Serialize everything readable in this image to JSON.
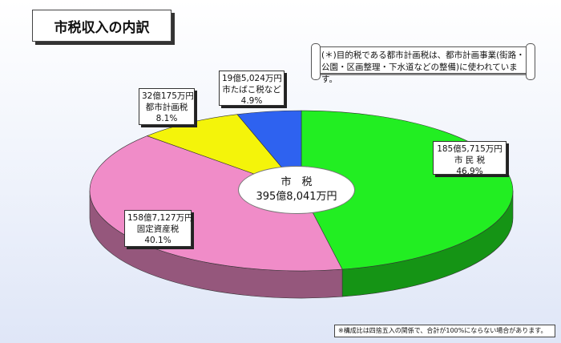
{
  "title": "市税収入の内訳",
  "note": "(＊)目的税である都市計画税は、都市計画事業(街路・公園・区画整理・下水道などの整備)に使われています。",
  "footnote": "※構成比は四捨五入の関係で、合計が100%にならない場合があります。",
  "center": {
    "line1": "市　税",
    "line2": "395億8,041万円"
  },
  "colors": {
    "green": "#22ee22",
    "pink": "#f08cc8",
    "yellow": "#f4f40a",
    "blue": "#2e62f0"
  },
  "chart_data": {
    "type": "pie",
    "title": "市税収入の内訳",
    "total_label": "395億8,041万円",
    "slices": [
      {
        "name": "市民税",
        "label": "市 民 税",
        "amount": "185億5,715万円",
        "percent": 46.9,
        "percent_label": "46.9%",
        "color": "#22ee22"
      },
      {
        "name": "固定資産税",
        "label": "固定資産税",
        "amount": "158億7,127万円",
        "percent": 40.1,
        "percent_label": "40.1%",
        "color": "#f08cc8"
      },
      {
        "name": "都市計画税",
        "label": "都市計画税",
        "amount": "32億175万円",
        "percent": 8.1,
        "percent_label": "8.1%",
        "color": "#f4f40a"
      },
      {
        "name": "市たばこ税など",
        "label": "市たばこ税など",
        "amount": "19億5,024万円",
        "percent": 4.9,
        "percent_label": "4.9%",
        "color": "#2e62f0"
      }
    ]
  }
}
